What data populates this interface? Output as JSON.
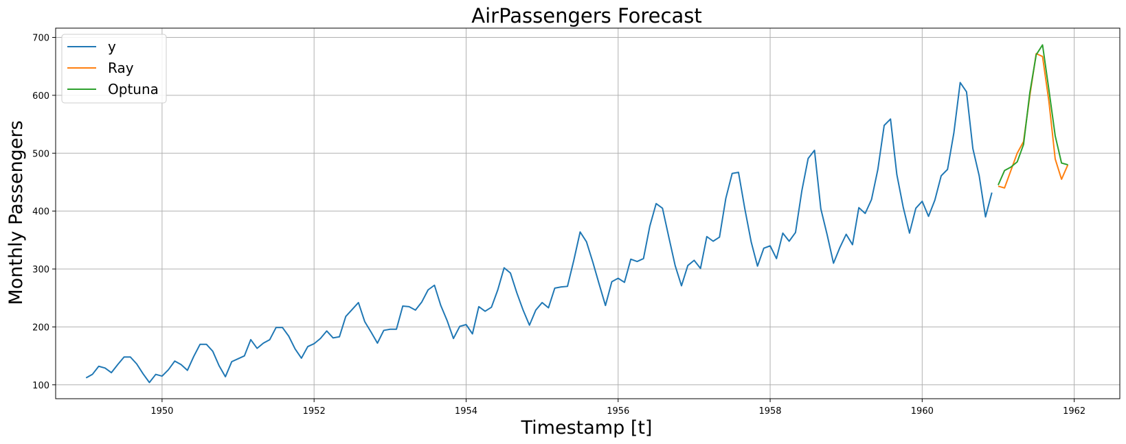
{
  "chart_data": {
    "type": "line",
    "title": "AirPassengers Forecast",
    "xlabel": "Timestamp [t]",
    "ylabel": "Monthly Passengers",
    "xlim": [
      1948.6,
      1962.6
    ],
    "ylim": [
      76,
      716
    ],
    "x_ticks": [
      1950,
      1952,
      1954,
      1956,
      1958,
      1960,
      1962
    ],
    "x_tick_labels": [
      "1950",
      "1952",
      "1954",
      "1956",
      "1958",
      "1960",
      "1962"
    ],
    "y_ticks": [
      100,
      200,
      300,
      400,
      500,
      600,
      700
    ],
    "y_tick_labels": [
      "100",
      "200",
      "300",
      "400",
      "500",
      "600",
      "700"
    ],
    "grid": true,
    "legend_position": "upper-left",
    "series": [
      {
        "name": "y",
        "color": "#1f77b4",
        "x_start": "1949-01",
        "x_step": "1 month",
        "values": [
          112,
          118,
          132,
          129,
          121,
          135,
          148,
          148,
          136,
          119,
          104,
          118,
          115,
          126,
          141,
          135,
          125,
          149,
          170,
          170,
          158,
          133,
          114,
          140,
          145,
          150,
          178,
          163,
          172,
          178,
          199,
          199,
          184,
          162,
          146,
          166,
          171,
          180,
          193,
          181,
          183,
          218,
          230,
          242,
          209,
          191,
          172,
          194,
          196,
          196,
          236,
          235,
          229,
          243,
          264,
          272,
          237,
          211,
          180,
          201,
          204,
          188,
          235,
          227,
          234,
          264,
          302,
          293,
          259,
          229,
          203,
          229,
          242,
          233,
          267,
          269,
          270,
          315,
          364,
          347,
          312,
          274,
          237,
          278,
          284,
          277,
          317,
          313,
          318,
          374,
          413,
          405,
          355,
          306,
          271,
          306,
          315,
          301,
          356,
          348,
          355,
          422,
          465,
          467,
          404,
          347,
          305,
          336,
          340,
          318,
          362,
          348,
          363,
          435,
          491,
          505,
          404,
          359,
          310,
          337,
          360,
          342,
          406,
          396,
          420,
          472,
          548,
          559,
          463,
          407,
          362,
          405,
          417,
          391,
          419,
          461,
          472,
          535,
          622,
          606,
          508,
          461,
          390,
          432
        ]
      },
      {
        "name": "Ray",
        "color": "#ff7f0e",
        "x_start": "1961-01",
        "x_step": "1 month",
        "values": [
          443,
          440,
          470,
          500,
          520,
          600,
          672,
          667,
          590,
          490,
          455,
          480
        ]
      },
      {
        "name": "Optuna",
        "color": "#2ca02c",
        "x_start": "1961-01",
        "x_step": "1 month",
        "values": [
          445,
          470,
          476,
          485,
          515,
          605,
          670,
          687,
          610,
          530,
          483,
          480
        ]
      }
    ]
  }
}
